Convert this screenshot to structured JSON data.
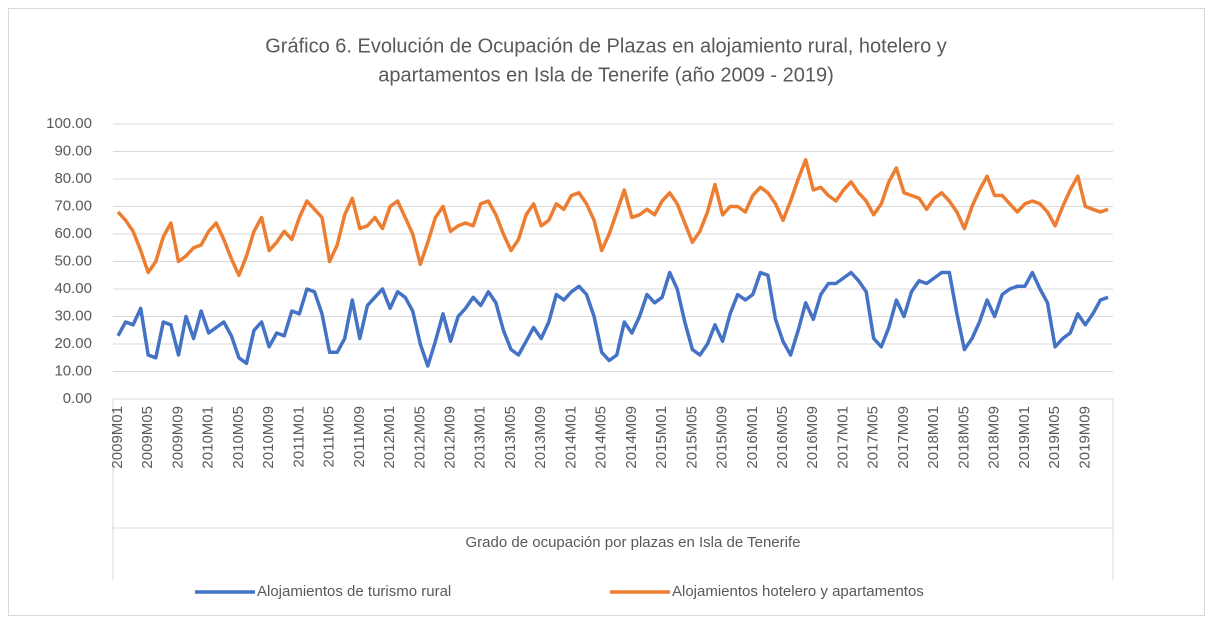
{
  "chart_data": {
    "type": "line",
    "title": [
      "Gráfico 6. Evolución de Ocupación de Plazas en alojamiento rural, hotelero y",
      "apartamentos en Isla de Tenerife (año 2009 - 2019)"
    ],
    "x_label": "Grado de ocupación por plazas en Isla de Tenerife",
    "categories": [
      "2009M01",
      null,
      null,
      null,
      "2009M05",
      null,
      null,
      null,
      "2009M09",
      null,
      null,
      null,
      "2010M01",
      null,
      null,
      null,
      "2010M05",
      null,
      null,
      null,
      "2010M09",
      null,
      null,
      null,
      "2011M01",
      null,
      null,
      null,
      "2011M05",
      null,
      null,
      null,
      "2011M09",
      null,
      null,
      null,
      "2012M01",
      null,
      null,
      null,
      "2012M05",
      null,
      null,
      null,
      "2012M09",
      null,
      null,
      null,
      "2013M01",
      null,
      null,
      null,
      "2013M05",
      null,
      null,
      null,
      "2013M09",
      null,
      null,
      null,
      "2014M01",
      null,
      null,
      null,
      "2014M05",
      null,
      null,
      null,
      "2014M09",
      null,
      null,
      null,
      "2015M01",
      null,
      null,
      null,
      "2015M05",
      null,
      null,
      null,
      "2015M09",
      null,
      null,
      null,
      "2016M01",
      null,
      null,
      null,
      "2016M05",
      null,
      null,
      null,
      "2016M09",
      null,
      null,
      null,
      "2017M01",
      null,
      null,
      null,
      "2017M05",
      null,
      null,
      null,
      "2017M09",
      null,
      null,
      null,
      "2018M01",
      null,
      null,
      null,
      "2018M05",
      null,
      null,
      null,
      "2018M09",
      null,
      null,
      null,
      "2019M01",
      null,
      null,
      null,
      "2019M05",
      null,
      null,
      null,
      "2019M09",
      null,
      null,
      null
    ],
    "series": [
      {
        "name": "Alojamientos de turismo rural",
        "color": "#4472c4",
        "values": [
          23,
          28,
          27,
          33,
          16,
          15,
          28,
          27,
          16,
          30,
          22,
          32,
          24,
          26,
          28,
          23,
          15,
          13,
          25,
          28,
          19,
          24,
          23,
          32,
          31,
          40,
          39,
          31,
          17,
          17,
          22,
          36,
          22,
          34,
          37,
          40,
          33,
          39,
          37,
          32,
          20,
          12,
          21,
          31,
          21,
          30,
          33,
          37,
          34,
          39,
          35,
          25,
          18,
          16,
          21,
          26,
          22,
          28,
          38,
          36,
          39,
          41,
          38,
          30,
          17,
          14,
          16,
          28,
          24,
          30,
          38,
          35,
          37,
          46,
          40,
          28,
          18,
          16,
          20,
          27,
          21,
          31,
          38,
          36,
          38,
          46,
          45,
          29,
          21,
          16,
          25,
          35,
          29,
          38,
          42,
          42,
          44,
          46,
          43,
          39,
          22,
          19,
          26,
          36,
          30,
          39,
          43,
          42,
          44,
          46,
          46,
          31,
          18,
          22,
          28,
          36,
          30,
          38,
          40,
          41,
          41,
          46,
          40,
          35,
          19,
          22,
          24,
          31,
          27,
          31,
          36,
          37
        ]
      },
      {
        "name": "Alojamientos hotelero y apartamentos",
        "color": "#ed7d31",
        "values": [
          68,
          65,
          61,
          54,
          46,
          50,
          59,
          64,
          50,
          52,
          55,
          56,
          61,
          64,
          58,
          51,
          45,
          52,
          61,
          66,
          54,
          57,
          61,
          58,
          66,
          72,
          69,
          66,
          50,
          56,
          67,
          73,
          62,
          63,
          66,
          62,
          70,
          72,
          66,
          60,
          49,
          57,
          66,
          70,
          61,
          63,
          64,
          63,
          71,
          72,
          67,
          60,
          54,
          58,
          67,
          71,
          63,
          65,
          71,
          69,
          74,
          75,
          71,
          65,
          54,
          60,
          68,
          76,
          66,
          67,
          69,
          67,
          72,
          75,
          71,
          64,
          57,
          61,
          68,
          78,
          67,
          70,
          70,
          68,
          74,
          77,
          75,
          71,
          65,
          72,
          80,
          87,
          76,
          77,
          74,
          72,
          76,
          79,
          75,
          72,
          67,
          71,
          79,
          84,
          75,
          74,
          73,
          69,
          73,
          75,
          72,
          68,
          62,
          70,
          76,
          81,
          74,
          74,
          71,
          68,
          71,
          72,
          71,
          68,
          63,
          70,
          76,
          81,
          70,
          69,
          68,
          69
        ]
      }
    ],
    "ylim": [
      0,
      100
    ],
    "yticks": [
      {
        "value": 0,
        "label": "0.00"
      },
      {
        "value": 10,
        "label": "10.00"
      },
      {
        "value": 20,
        "label": "20.00"
      },
      {
        "value": 30,
        "label": "30.00"
      },
      {
        "value": 40,
        "label": "40.00"
      },
      {
        "value": 50,
        "label": "50.00"
      },
      {
        "value": 60,
        "label": "60.00"
      },
      {
        "value": 70,
        "label": "70.00"
      },
      {
        "value": 80,
        "label": "80.00"
      },
      {
        "value": 90,
        "label": "90.00"
      },
      {
        "value": 100,
        "label": "100.00"
      }
    ],
    "grid": true,
    "legend": "bottom"
  }
}
